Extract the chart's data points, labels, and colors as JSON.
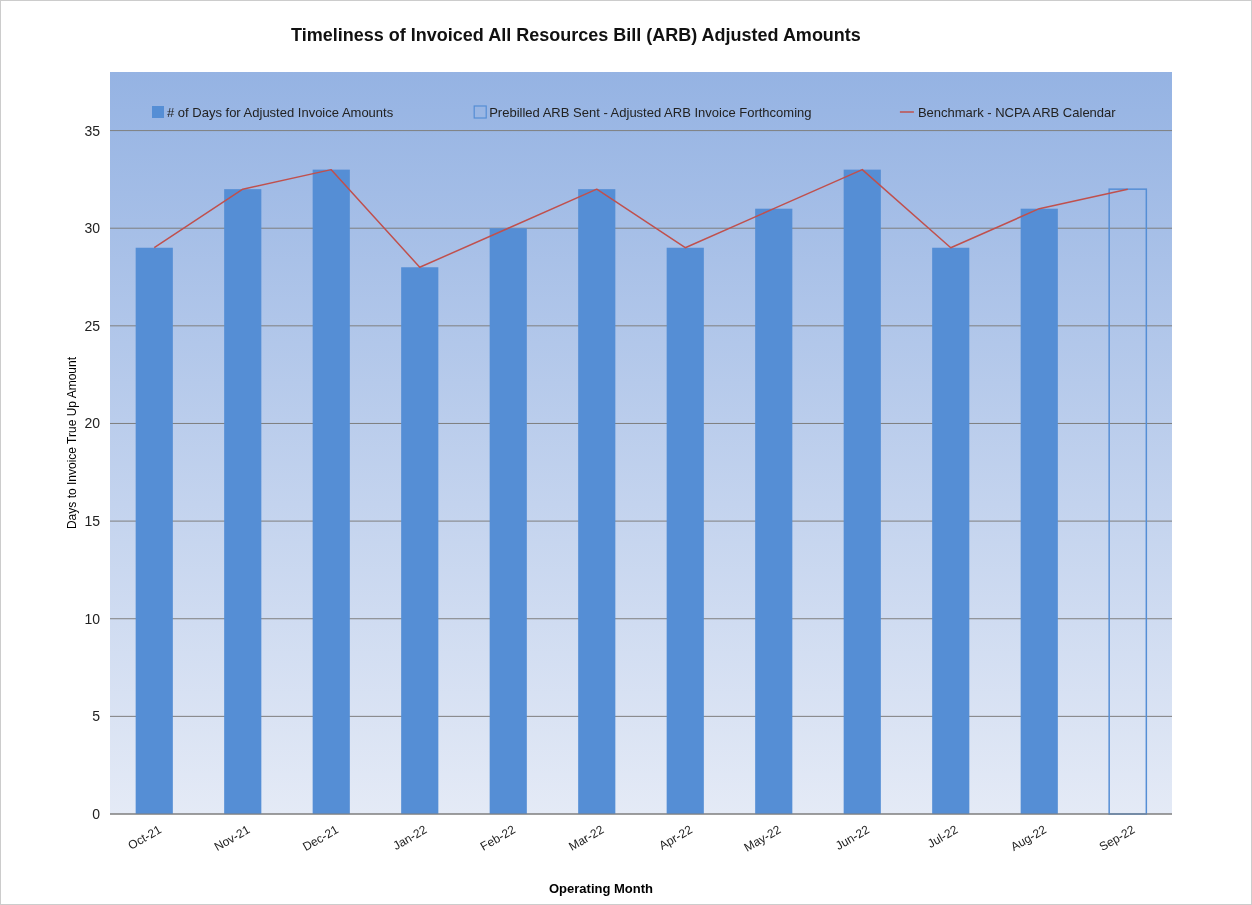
{
  "chart_data": {
    "type": "bar",
    "title": "Timeliness of Invoiced All Resources Bill (ARB) Adjusted Amounts",
    "xlabel": "Operating Month",
    "ylabel": "Days to Invoice True Up Amount",
    "categories": [
      "Oct-21",
      "Nov-21",
      "Dec-21",
      "Jan-22",
      "Feb-22",
      "Mar-22",
      "Apr-22",
      "May-22",
      "Jun-22",
      "Jul-22",
      "Aug-22",
      "Sep-22"
    ],
    "stacked": true,
    "series": [
      {
        "name": "# of Days for Adjusted Invoice Amounts",
        "color": "#558ed5",
        "values": [
          29,
          32,
          33,
          28,
          30,
          32,
          29,
          31,
          33,
          29,
          31,
          null
        ]
      },
      {
        "name": "Prebilled ARB Sent - Adjusted ARB Invoice Forthcoming",
        "color": "#558ed5",
        "values": [
          null,
          null,
          null,
          null,
          null,
          null,
          null,
          null,
          null,
          null,
          null,
          32
        ]
      },
      {
        "name": "Benchmark - NCPA ARB Calendar",
        "type": "line",
        "color": "#c0504d",
        "values": [
          29,
          32,
          33,
          28,
          30,
          32,
          29,
          31,
          33,
          29,
          31,
          32
        ]
      }
    ],
    "ylim": [
      0,
      38
    ],
    "yticks": [
      0,
      5,
      10,
      15,
      20,
      25,
      30,
      35
    ],
    "grid": "y",
    "legend": "top",
    "marker": "none",
    "line_style": "solid"
  }
}
